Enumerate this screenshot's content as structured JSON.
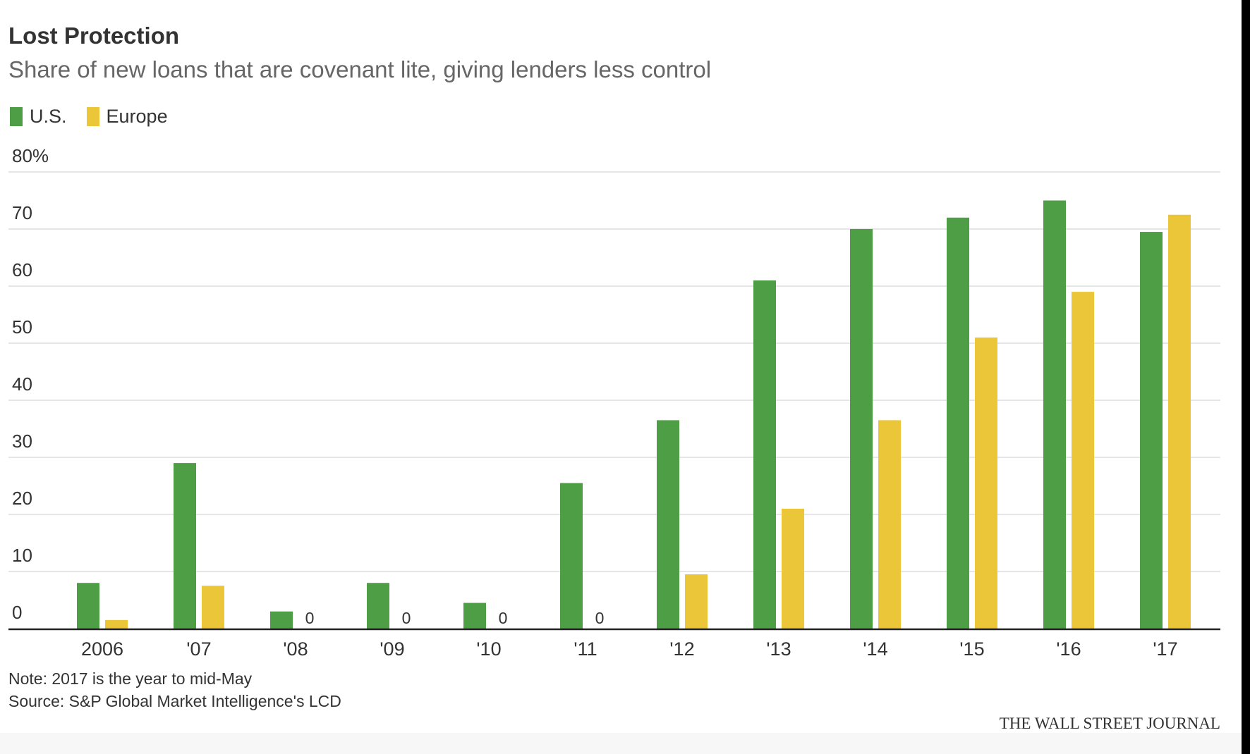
{
  "header": {
    "title": "Lost Protection",
    "subtitle": "Share of new loans that are covenant lite, giving lenders less control"
  },
  "legend": {
    "us_label": "U.S.",
    "europe_label": "Europe"
  },
  "footer": {
    "note": "Note: 2017 is the year to mid-May",
    "source": "Source: S&P Global Market Intelligence's LCD",
    "brand": "THE WALL STREET JOURNAL"
  },
  "colors": {
    "us": "#4e9e45",
    "europe": "#ecc639",
    "grid": "#dddddd",
    "axis": "#222222",
    "text": "#333333"
  },
  "chart_data": {
    "type": "bar",
    "title": "Lost Protection",
    "subtitle": "Share of new loans that are covenant lite, giving lenders less control",
    "categories": [
      "2006",
      "'07",
      "'08",
      "'09",
      "'10",
      "'11",
      "'12",
      "'13",
      "'14",
      "'15",
      "'16",
      "'17"
    ],
    "series": [
      {
        "name": "U.S.",
        "color": "#4e9e45",
        "values": [
          8,
          29,
          3,
          8,
          4.5,
          25.5,
          36.5,
          61,
          70,
          72,
          75,
          69.5
        ]
      },
      {
        "name": "Europe",
        "color": "#ecc639",
        "values": [
          1.5,
          7.5,
          0,
          0,
          0,
          0,
          9.5,
          21,
          36.5,
          51,
          59,
          72.5
        ]
      }
    ],
    "zero_labels": [
      "0",
      "0",
      "0",
      "0"
    ],
    "yticks": [
      "0",
      "10",
      "20",
      "30",
      "40",
      "50",
      "60",
      "70",
      "80%"
    ],
    "ylim": [
      0,
      80
    ],
    "xlabel": "",
    "ylabel": "",
    "grid": true,
    "legend_position": "top-left"
  }
}
